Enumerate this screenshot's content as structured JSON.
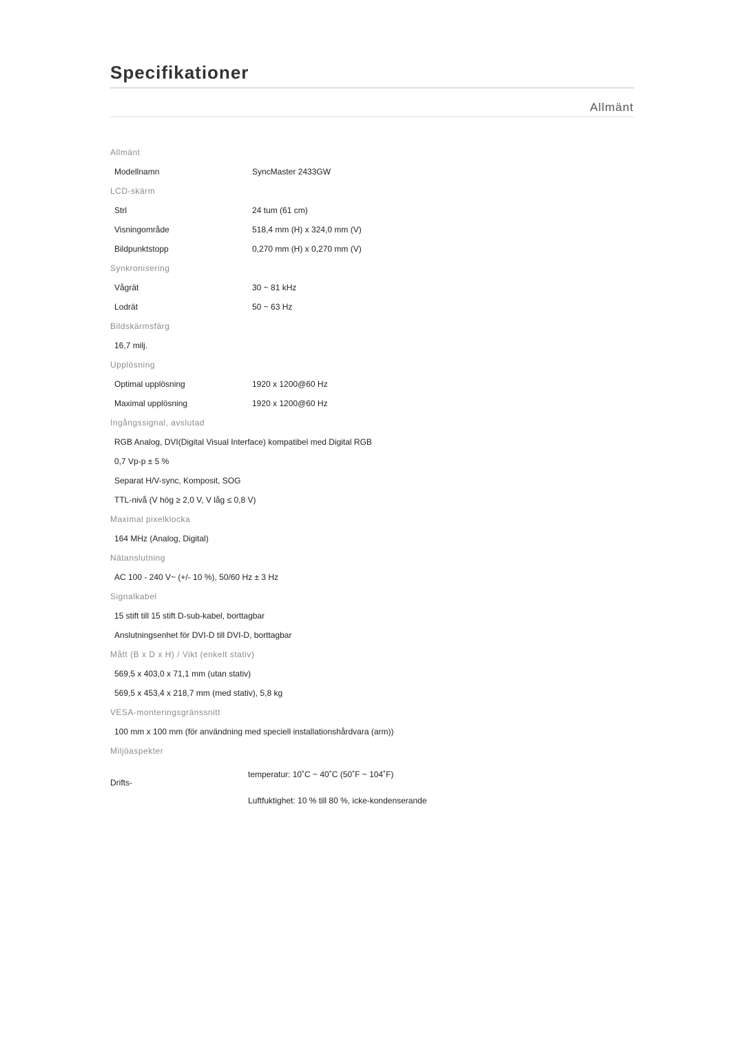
{
  "page": {
    "title": "Specifikationer",
    "section_label": "Allmänt"
  },
  "groups": {
    "general": {
      "header": "Allmänt",
      "model_label": "Modellnamn",
      "model_value": "SyncMaster 2433GW"
    },
    "lcd": {
      "header": "LCD-skärm",
      "size_label": "Strl",
      "size_value": "24 tum (61 cm)",
      "area_label": "Visningområde",
      "area_value": "518,4 mm (H) x 324,0 mm (V)",
      "pitch_label": "Bildpunktstopp",
      "pitch_value": "0,270 mm (H) x 0,270 mm (V)"
    },
    "sync": {
      "header": "Synkronisering",
      "horiz_label": "Vågrät",
      "horiz_value": "30 ~ 81 kHz",
      "vert_label": "Lodrät",
      "vert_value": "50 ~ 63 Hz"
    },
    "color": {
      "header": "Bildskärmsfärg",
      "line1": "16,7 milj."
    },
    "resolution": {
      "header": "Upplösning",
      "opt_label": "Optimal upplösning",
      "opt_value": "1920 x 1200@60 Hz",
      "max_label": "Maximal upplösning",
      "max_value": "1920 x 1200@60 Hz"
    },
    "input": {
      "header": "Ingångssignal, avslutad",
      "line1": "RGB Analog, DVI(Digital Visual Interface) kompatibel med Digital RGB",
      "line2": "0,7 Vp-p ± 5 %",
      "line3": "Separat H/V-sync, Komposit, SOG",
      "line4": "TTL-nivå (V hög ≥ 2,0 V, V låg ≤ 0,8 V)"
    },
    "pixelclock": {
      "header": "Maximal pixelklocka",
      "line1": "164 MHz (Analog, Digital)"
    },
    "power": {
      "header": "Nätanslutning",
      "line1": "AC 100 - 240 V~ (+/- 10 %), 50/60 Hz ± 3 Hz"
    },
    "cable": {
      "header": "Signalkabel",
      "line1": "15 stift till 15 stift D-sub-kabel, borttagbar",
      "line2": "Anslutningsenhet för DVI-D till DVI-D, borttagbar"
    },
    "dims": {
      "header": "Mått (B x D x H) / Vikt (enkelt stativ)",
      "line1": "569,5 x 403,0 x 71,1 mm (utan stativ)",
      "line2": "569,5 x 453,4 x 218,7 mm (med stativ), 5,8 kg"
    },
    "vesa": {
      "header": "VESA-monteringsgränssnitt",
      "line1": "100 mm x 100 mm (för användning med speciell installationshårdvara (arm))"
    },
    "env": {
      "header": "Miljöaspekter",
      "op_label": "Drifts-",
      "temp": "temperatur: 10˚C ~ 40˚C (50˚F ~ 104˚F)",
      "humid": "Luftfuktighet: 10 % till 80 %, icke-kondenserande"
    }
  }
}
